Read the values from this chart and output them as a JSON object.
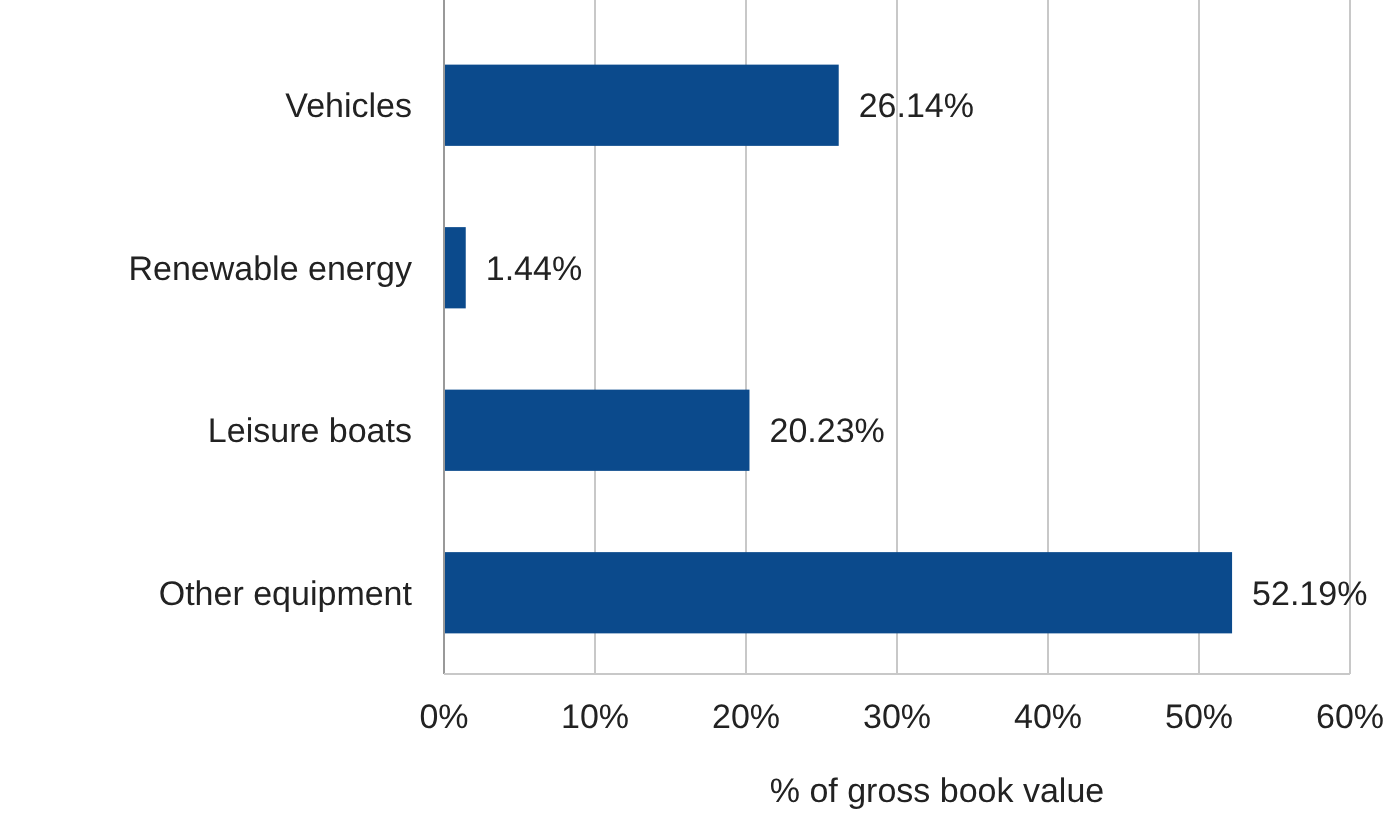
{
  "chart_data": {
    "type": "bar",
    "orientation": "horizontal",
    "xlabel": "% of gross book value",
    "categories": [
      "Vehicles",
      "Renewable energy",
      "Leisure boats",
      "Other equipment"
    ],
    "values": [
      26.14,
      1.44,
      20.23,
      52.19
    ],
    "value_labels": [
      "26.14%",
      "1.44%",
      "20.23%",
      "52.19%"
    ],
    "color": "#0b4a8c",
    "xlim": [
      0,
      60
    ],
    "xticks": [
      {
        "value": 0,
        "label": "0%"
      },
      {
        "value": 10,
        "label": "10%"
      },
      {
        "value": 20,
        "label": "20%"
      },
      {
        "value": 30,
        "label": "30%"
      },
      {
        "value": 40,
        "label": "40%"
      },
      {
        "value": 50,
        "label": "50%"
      },
      {
        "value": 60,
        "label": "60%"
      }
    ],
    "grid": "x"
  }
}
